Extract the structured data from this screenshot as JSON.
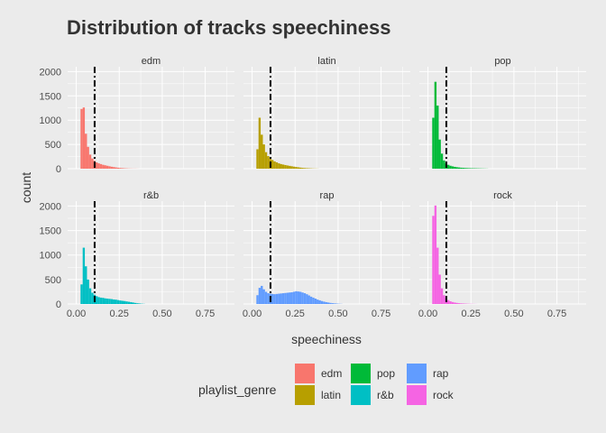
{
  "chart_data": {
    "type": "histogram",
    "title": "Distribution of tracks speechiness",
    "xlabel": "speechiness",
    "ylabel": "count",
    "xlim": [
      -0.05,
      0.92
    ],
    "ylim": [
      0,
      2100
    ],
    "x_ticks": [
      0.0,
      0.25,
      0.5,
      0.75
    ],
    "x_tick_labels": [
      "0.00",
      "0.25",
      "0.50",
      "0.75"
    ],
    "y_ticks": [
      0,
      500,
      1000,
      1500,
      2000
    ],
    "y_tick_labels": [
      "0",
      "500",
      "1000",
      "1500",
      "2000"
    ],
    "bin_width": 0.0125,
    "bin_start": 0.025,
    "reference_line": {
      "x": 0.107,
      "style": "dashed",
      "color": "#000000"
    },
    "grid": true,
    "legend": {
      "title": "playlist_genre",
      "position": "bottom"
    },
    "series": [
      {
        "name": "edm",
        "color": "#F8766D",
        "counts": [
          1230,
          1260,
          720,
          450,
          290,
          210,
          160,
          130,
          110,
          95,
          80,
          70,
          60,
          50,
          40,
          33,
          26,
          20,
          15,
          11,
          8,
          6,
          4,
          3,
          2,
          2,
          1
        ]
      },
      {
        "name": "latin",
        "color": "#B79F00",
        "counts": [
          400,
          1050,
          700,
          500,
          340,
          260,
          210,
          180,
          150,
          130,
          110,
          95,
          85,
          75,
          66,
          58,
          50,
          42,
          35,
          28,
          22,
          17,
          13,
          10,
          8,
          6,
          4,
          3,
          2
        ]
      },
      {
        "name": "pop",
        "color": "#00BA38",
        "counts": [
          1050,
          1790,
          1300,
          600,
          310,
          170,
          110,
          80,
          60,
          48,
          38,
          30,
          25,
          20,
          17,
          14,
          12,
          10,
          9,
          8,
          7,
          6,
          5,
          4,
          3,
          2
        ]
      },
      {
        "name": "r&b",
        "color": "#00BFC4",
        "counts": [
          400,
          1150,
          770,
          500,
          320,
          230,
          190,
          160,
          140,
          130,
          125,
          115,
          110,
          105,
          100,
          92,
          88,
          80,
          72,
          65,
          60,
          52,
          45,
          38,
          30,
          22,
          15,
          10,
          6,
          3
        ]
      },
      {
        "name": "rap",
        "color": "#619CFF",
        "counts": [
          180,
          330,
          370,
          300,
          250,
          220,
          210,
          205,
          200,
          205,
          210,
          215,
          220,
          225,
          230,
          235,
          240,
          250,
          260,
          255,
          250,
          235,
          220,
          200,
          175,
          150,
          130,
          110,
          90,
          75,
          60,
          48,
          38,
          30,
          22,
          16,
          12,
          8,
          5,
          3
        ]
      },
      {
        "name": "rock",
        "color": "#F564E3",
        "counts": [
          1800,
          2010,
          1150,
          600,
          320,
          180,
          120,
          80,
          55,
          40,
          30,
          22,
          16,
          12,
          9,
          7,
          5,
          4,
          3,
          2,
          1
        ]
      }
    ]
  }
}
